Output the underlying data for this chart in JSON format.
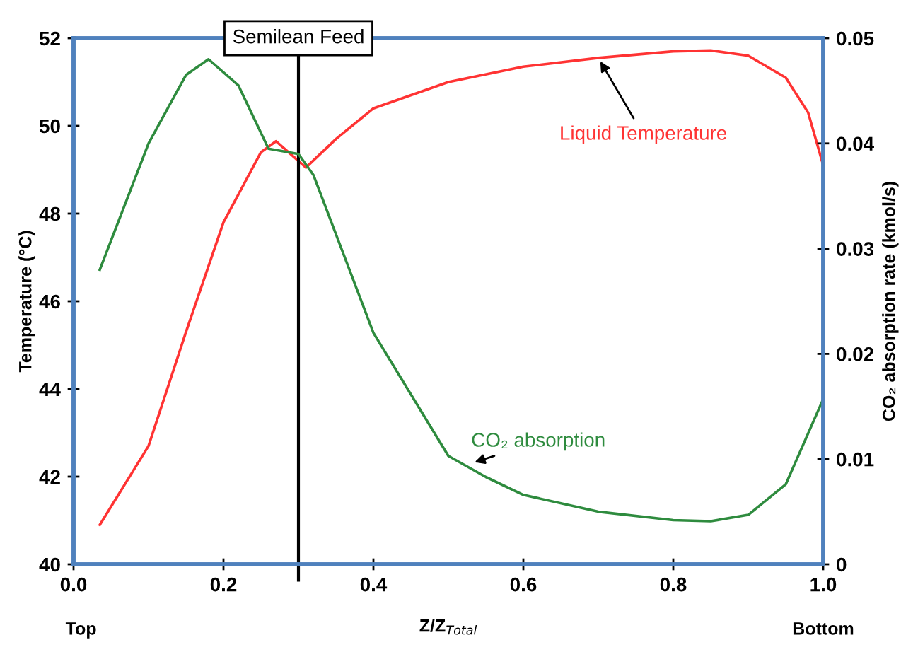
{
  "chart_data": {
    "type": "line",
    "xlabel": "Z/Z$_{Total}$",
    "ylabel": "Temperature (°C)",
    "y2label": "CO₂ absorption rate (kmol/s)",
    "xlim": [
      0,
      1
    ],
    "xticks": [
      {
        "value": 0,
        "label": "0.0"
      },
      0.2,
      0.4,
      0.6,
      0.8,
      {
        "value": 1,
        "label": "1.0"
      }
    ],
    "ylim": [
      40,
      52
    ],
    "yticks": [
      40,
      42,
      44,
      46,
      48,
      50,
      52
    ],
    "y2lim": [
      0,
      0.05
    ],
    "y2ticks": [
      0,
      0.01,
      0.02,
      0.03,
      0.04,
      0.05
    ],
    "grid": false,
    "marker": "none",
    "line_style": "solid",
    "series": [
      {
        "color": "#ff3333",
        "x": [
          0.035,
          0.1,
          0.15,
          0.2,
          0.25,
          0.27,
          0.3,
          0.31,
          0.35,
          0.4,
          0.5,
          0.6,
          0.7,
          0.8,
          0.85,
          0.9,
          0.95,
          0.98,
          1.0
        ],
        "values": [
          40.9,
          42.7,
          45.3,
          47.8,
          49.4,
          49.65,
          49.2,
          49.05,
          49.7,
          50.4,
          51.0,
          51.35,
          51.55,
          51.7,
          51.72,
          51.6,
          51.1,
          50.3,
          49.1
        ]
      },
      {
        "color": "#2e8b3e",
        "axis": "y2",
        "x": [
          0.035,
          0.1,
          0.15,
          0.18,
          0.22,
          0.26,
          0.3,
          0.32,
          0.4,
          0.5,
          0.55,
          0.6,
          0.7,
          0.8,
          0.85,
          0.9,
          0.95,
          1.0
        ],
        "values": [
          0.028,
          0.04,
          0.0465,
          0.048,
          0.0455,
          0.0395,
          0.039,
          0.037,
          0.022,
          0.0103,
          0.0083,
          0.0066,
          0.005,
          0.0042,
          0.0041,
          0.0047,
          0.0076,
          0.0157
        ]
      }
    ],
    "ref_lines": [
      {
        "axis": "x",
        "value": 0.3,
        "label": "Semilean Feed",
        "color": "#000000",
        "line_style": "solid"
      }
    ],
    "annotations": [
      {
        "text": "Liquid Temperature",
        "x": 0.7,
        "y": 51.55
      },
      {
        "text": "CO₂ absorption",
        "x": 0.53,
        "y": 42.3
      },
      "Top",
      "Bottom"
    ]
  }
}
